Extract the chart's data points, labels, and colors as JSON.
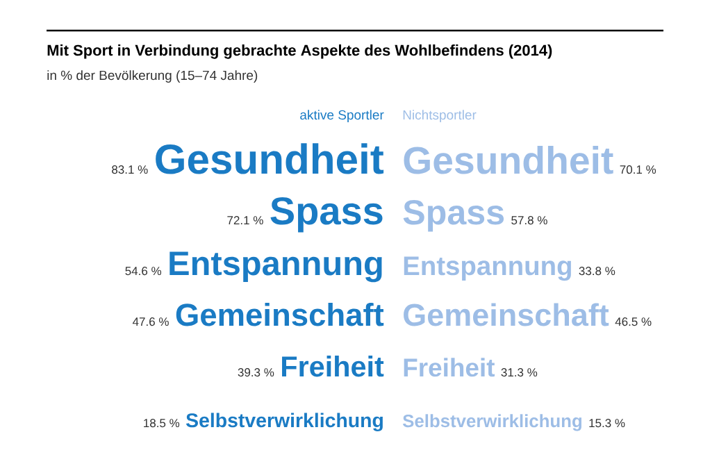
{
  "chart_data": {
    "type": "other",
    "title": "Mit Sport in Verbindung gebrachte Aspekte des Wohlbefindens (2014)",
    "subtitle": "in % der Bevölkerung (15–74 Jahre)",
    "categories": [
      "Gesundheit",
      "Spass",
      "Entspannung",
      "Gemeinschaft",
      "Freiheit",
      "Selbstverwirklichung"
    ],
    "series": [
      {
        "name": "aktive Sportler",
        "color": "#1a7bc4",
        "values": [
          83.1,
          72.1,
          54.6,
          47.6,
          39.3,
          18.5
        ],
        "value_labels": [
          "83.1 %",
          "72.1 %",
          "54.6 %",
          "47.6 %",
          "39.3 %",
          "18.5 %"
        ]
      },
      {
        "name": "Nichtsportler",
        "color": "#9dbde6",
        "values": [
          70.1,
          57.8,
          33.8,
          46.5,
          31.3,
          15.3
        ],
        "value_labels": [
          "70.1 %",
          "57.8 %",
          "33.8 %",
          "46.5 %",
          "31.3 %",
          "15.3 %"
        ]
      }
    ]
  }
}
